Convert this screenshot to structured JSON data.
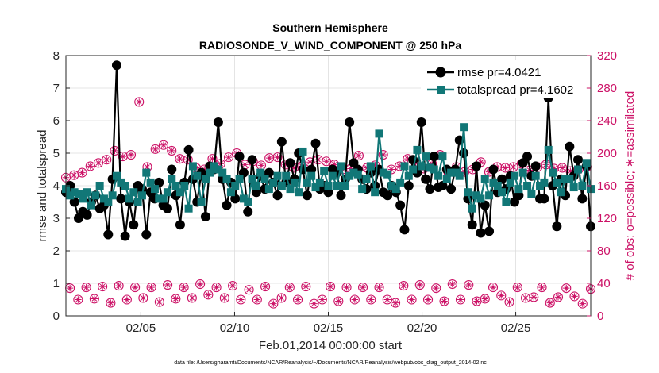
{
  "chart_data": {
    "type": "line",
    "title": "Southern Hemisphere",
    "subtitle": "RADIOSONDE_V_WIND_COMPONENT @ 250 hPa",
    "xlabel": "Feb.01,2014 00:00:00 start",
    "ylabel_left": "rmse and totalspread",
    "ylabel_right": "# of obs: o=possible; ∗=assimilated",
    "footer": "data file: /Users/gharamti/Documents/NCAR/Reanalysis/~/Documents/NCAR/Reanalysis/webpub/obs_diag_output_2014-02.nc",
    "xlim": [
      1,
      29
    ],
    "ylim_left": [
      0,
      8
    ],
    "ylim_right": [
      0,
      320
    ],
    "x_ticks": [
      5,
      10,
      15,
      20,
      25
    ],
    "x_tick_labels": [
      "02/05",
      "02/10",
      "02/15",
      "02/20",
      "02/25"
    ],
    "y_ticks_left": [
      "0",
      "1",
      "2",
      "3",
      "4",
      "5",
      "6",
      "7",
      "8"
    ],
    "y_ticks_right": [
      "0",
      "40",
      "80",
      "120",
      "160",
      "200",
      "240",
      "280",
      "320"
    ],
    "legend": {
      "position": "top-right",
      "entries": [
        "rmse pr=4.0421",
        "totalspread pr=4.1602"
      ]
    },
    "colors": {
      "rmse": "#000000",
      "totalspread": "#117777",
      "obs": "#cc1166",
      "grid": "#dddddd"
    },
    "series": [
      {
        "name": "rmse",
        "axis": "left",
        "values": [
          3.8,
          4.0,
          3.5,
          3.0,
          3.2,
          3.1,
          3.5,
          3.7,
          3.3,
          3.4,
          2.5,
          4.2,
          7.7,
          3.6,
          2.45,
          3.5,
          2.8,
          4.0,
          3.9,
          2.5,
          3.8,
          3.6,
          4.1,
          3.4,
          3.3,
          4.5,
          3.7,
          2.8,
          4.1,
          5.1,
          4.2,
          3.5,
          4.4,
          3.05,
          4.6,
          4.5,
          5.95,
          4.2,
          3.4,
          4.1,
          3.6,
          4.9,
          4.4,
          3.2,
          4.8,
          3.8,
          4.3,
          3.9,
          4.4,
          4.1,
          3.7,
          5.35,
          4.1,
          4.7,
          4.2,
          5.0,
          4.5,
          3.7,
          4.5,
          5.3,
          3.9,
          4.0,
          3.8,
          4.5,
          4.4,
          3.7,
          4.2,
          5.95,
          4.7,
          4.5,
          4.2,
          3.9,
          4.4,
          4.0,
          4.5,
          3.8,
          3.7,
          4.0,
          3.8,
          3.4,
          2.65,
          4.0,
          4.8,
          4.4,
          5.95,
          4.2,
          3.9,
          4.9,
          3.95,
          4.0,
          4.5,
          3.9,
          4.5,
          5.4,
          5.0,
          3.6,
          2.8,
          4.6,
          2.55,
          3.4,
          2.6,
          4.5,
          3.8,
          4.2,
          3.9,
          4.3,
          3.5,
          3.7,
          4.7,
          4.9,
          4.3,
          4.6,
          3.6,
          3.6,
          6.7,
          4.0,
          2.75,
          4.2,
          3.7,
          5.2,
          4.3,
          4.8,
          3.6,
          4.6,
          2.75
        ]
      },
      {
        "name": "totalspread",
        "axis": "left",
        "values": [
          3.9,
          3.7,
          3.8,
          3.75,
          3.6,
          3.8,
          3.4,
          3.7,
          4.0,
          3.6,
          3.5,
          3.7,
          4.3,
          4.1,
          4.0,
          3.6,
          3.8,
          3.5,
          3.7,
          4.4,
          4.1,
          3.9,
          3.6,
          3.6,
          3.8,
          4.2,
          4.0,
          3.8,
          4.0,
          3.3,
          4.6,
          4.3,
          3.5,
          4.2,
          4.4,
          4.6,
          4.5,
          4.4,
          4.2,
          3.8,
          4.0,
          4.2,
          3.6,
          3.5,
          4.2,
          4.0,
          4.4,
          4.2,
          3.9,
          4.1,
          4.3,
          4.0,
          4.3,
          3.9,
          4.1,
          3.8,
          5.05,
          4.1,
          4.3,
          3.95,
          4.1,
          4.45,
          4.0,
          4.3,
          4.0,
          4.6,
          4.0,
          4.3,
          4.4,
          4.35,
          3.9,
          4.2,
          4.6,
          3.8,
          5.6,
          4.4,
          4.35,
          4.0,
          3.9,
          4.1,
          4.6,
          4.3,
          4.5,
          5.1,
          4.6,
          4.9,
          4.55,
          4.5,
          4.3,
          4.9,
          4.2,
          4.4,
          4.4,
          4.3,
          5.8,
          3.8,
          3.3,
          3.7,
          3.6,
          4.2,
          3.7,
          4.1,
          4.0,
          3.8,
          3.5,
          4.1,
          4.3,
          3.9,
          4.4,
          4.0,
          3.75,
          4.3,
          4.0,
          4.1,
          5.1,
          4.4,
          4.1,
          3.8,
          4.2,
          4.2,
          3.95,
          4.5,
          4.0,
          4.7,
          3.9
        ]
      },
      {
        "name": "obs_possible",
        "axis": "right",
        "values": [
          170,
          34,
          173,
          20,
          176,
          35,
          184,
          21,
          188,
          36,
          192,
          16,
          203,
          37,
          196,
          20,
          198,
          35,
          263,
          22,
          183,
          35,
          205,
          17,
          210,
          38,
          203,
          21,
          193,
          35,
          192,
          22,
          182,
          39,
          180,
          26,
          193,
          35,
          187,
          22,
          195,
          37,
          200,
          20,
          186,
          32,
          190,
          20,
          185,
          36,
          194,
          15,
          195,
          22,
          186,
          35,
          182,
          20,
          184,
          36,
          189,
          15,
          192,
          20,
          190,
          36,
          186,
          18,
          180,
          35,
          181,
          20,
          197,
          35,
          182,
          20,
          185,
          35,
          198,
          20,
          180,
          16,
          184,
          37,
          193,
          20,
          188,
          38,
          181,
          20,
          187,
          34,
          198,
          18,
          176,
          39,
          183,
          20,
          177,
          38,
          180,
          18,
          189,
          21,
          177,
          35,
          183,
          25,
          182,
          17,
          183,
          35,
          187,
          22,
          179,
          23,
          183,
          35,
          186,
          16,
          181,
          23,
          182,
          34,
          178,
          24,
          180,
          15,
          183,
          33
        ]
      },
      {
        "name": "obs_assimilated",
        "axis": "right",
        "values": [
          170,
          34,
          173,
          20,
          176,
          35,
          184,
          21,
          188,
          36,
          192,
          16,
          203,
          37,
          196,
          20,
          198,
          35,
          263,
          22,
          183,
          35,
          205,
          17,
          210,
          38,
          203,
          21,
          193,
          35,
          192,
          22,
          182,
          39,
          180,
          26,
          193,
          35,
          187,
          22,
          195,
          37,
          200,
          20,
          186,
          32,
          190,
          20,
          185,
          36,
          194,
          15,
          195,
          22,
          186,
          35,
          182,
          20,
          184,
          36,
          189,
          15,
          192,
          20,
          190,
          36,
          186,
          18,
          180,
          35,
          181,
          20,
          197,
          35,
          182,
          20,
          185,
          35,
          198,
          20,
          180,
          16,
          184,
          37,
          193,
          20,
          188,
          38,
          181,
          20,
          187,
          34,
          198,
          18,
          176,
          39,
          183,
          20,
          177,
          38,
          180,
          18,
          189,
          21,
          177,
          35,
          183,
          25,
          182,
          17,
          183,
          35,
          187,
          22,
          179,
          23,
          183,
          35,
          186,
          16,
          181,
          23,
          182,
          34,
          178,
          24,
          180,
          15,
          183,
          33
        ]
      }
    ]
  }
}
